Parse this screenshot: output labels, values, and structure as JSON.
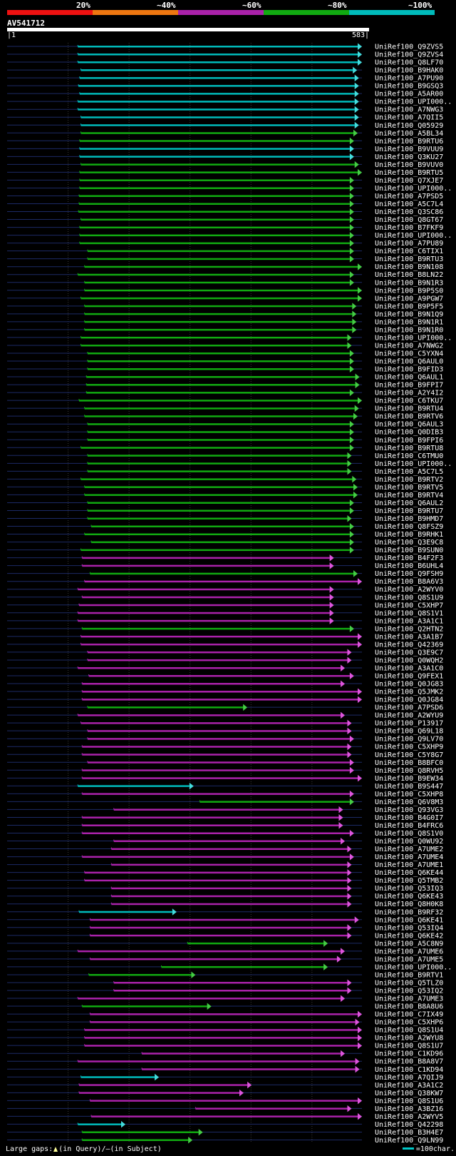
{
  "legend": {
    "labels": [
      "20%",
      "~40%",
      "~60%",
      "~80%",
      "~100%"
    ],
    "colors": [
      "#ee1111",
      "#ee7711",
      "#aa22aa",
      "#11aa11",
      "#00bbbb"
    ]
  },
  "query": {
    "name": "AV541712",
    "start": "|1",
    "end": "583|"
  },
  "footer": {
    "left_prefix": "Large gaps:",
    "left_in_query": "(in Query)/",
    "left_dash": "–",
    "left_in_subject": "(in Subject)",
    "scale": "=100char."
  },
  "chart_data": {
    "type": "alignment-overview",
    "query_length": 583,
    "hits": [
      {
        "name": "UniRef100_Q9ZVS5",
        "start": 117,
        "end": 583,
        "identity": "~100%"
      },
      {
        "name": "UniRef100_Q9ZVS4",
        "start": 117,
        "end": 583,
        "identity": "~100%"
      },
      {
        "name": "UniRef100_Q8LF70",
        "start": 117,
        "end": 583,
        "identity": "~100%"
      },
      {
        "name": "UniRef100_B9HAK0",
        "start": 122,
        "end": 575,
        "identity": "~100%"
      },
      {
        "name": "UniRef100_A7PU90",
        "start": 120,
        "end": 578,
        "identity": "~100%"
      },
      {
        "name": "UniRef100_B9GSQ3",
        "start": 118,
        "end": 578,
        "identity": "~100%"
      },
      {
        "name": "UniRef100_A5AR00",
        "start": 120,
        "end": 578,
        "identity": "~100%"
      },
      {
        "name": "UniRef100_UPI000..",
        "start": 117,
        "end": 578,
        "identity": "~100%"
      },
      {
        "name": "UniRef100_A7NWG3",
        "start": 117,
        "end": 578,
        "identity": "~100%"
      },
      {
        "name": "UniRef100_A7QII5",
        "start": 122,
        "end": 578,
        "identity": "~100%"
      },
      {
        "name": "UniRef100_Q05929",
        "start": 122,
        "end": 578,
        "identity": "~100%"
      },
      {
        "name": "UniRef100_A5BL34",
        "start": 122,
        "end": 576,
        "identity": "~80%"
      },
      {
        "name": "UniRef100_B9RTU6",
        "start": 120,
        "end": 570,
        "identity": "~80%"
      },
      {
        "name": "UniRef100_B9VUU9",
        "start": 120,
        "end": 570,
        "identity": "~100%"
      },
      {
        "name": "UniRef100_Q3KU27",
        "start": 120,
        "end": 570,
        "identity": "~100%"
      },
      {
        "name": "UniRef100_B9VUV0",
        "start": 122,
        "end": 578,
        "identity": "~80%"
      },
      {
        "name": "UniRef100_B9RTU5",
        "start": 120,
        "end": 583,
        "identity": "~80%"
      },
      {
        "name": "UniRef100_Q7XJE7",
        "start": 120,
        "end": 570,
        "identity": "~80%"
      },
      {
        "name": "UniRef100_UPI000..",
        "start": 120,
        "end": 570,
        "identity": "~80%"
      },
      {
        "name": "UniRef100_A7PSD5",
        "start": 119,
        "end": 570,
        "identity": "~80%"
      },
      {
        "name": "UniRef100_A5C7L4",
        "start": 119,
        "end": 570,
        "identity": "~80%"
      },
      {
        "name": "UniRef100_Q3SC86",
        "start": 118,
        "end": 570,
        "identity": "~80%"
      },
      {
        "name": "UniRef100_Q8GT67",
        "start": 122,
        "end": 570,
        "identity": "~80%"
      },
      {
        "name": "UniRef100_B7FKF9",
        "start": 120,
        "end": 570,
        "identity": "~80%"
      },
      {
        "name": "UniRef100_UPI000..",
        "start": 120,
        "end": 570,
        "identity": "~80%"
      },
      {
        "name": "UniRef100_A7PU89",
        "start": 120,
        "end": 570,
        "identity": "~80%"
      },
      {
        "name": "UniRef100_C6TIX1",
        "start": 133,
        "end": 570,
        "identity": "~80%"
      },
      {
        "name": "UniRef100_B9RTU3",
        "start": 133,
        "end": 570,
        "identity": "~80%"
      },
      {
        "name": "UniRef100_B9N108",
        "start": 128,
        "end": 583,
        "identity": "~80%"
      },
      {
        "name": "UniRef100_B8LN22",
        "start": 117,
        "end": 570,
        "identity": "~80%"
      },
      {
        "name": "UniRef100_B9N1R3",
        "start": 128,
        "end": 570,
        "identity": "~80%"
      },
      {
        "name": "UniRef100_B9P5S0",
        "start": 128,
        "end": 583,
        "identity": "~80%"
      },
      {
        "name": "UniRef100_A9PGW7",
        "start": 122,
        "end": 583,
        "identity": "~80%"
      },
      {
        "name": "UniRef100_B9P5F5",
        "start": 128,
        "end": 574,
        "identity": "~80%"
      },
      {
        "name": "UniRef100_B9N1Q9",
        "start": 128,
        "end": 574,
        "identity": "~80%"
      },
      {
        "name": "UniRef100_B9N1R1",
        "start": 128,
        "end": 574,
        "identity": "~80%"
      },
      {
        "name": "UniRef100_B9N1R0",
        "start": 128,
        "end": 574,
        "identity": "~80%"
      },
      {
        "name": "UniRef100_UPI000..",
        "start": 122,
        "end": 566,
        "identity": "~80%"
      },
      {
        "name": "UniRef100_A7NWG2",
        "start": 122,
        "end": 566,
        "identity": "~80%"
      },
      {
        "name": "UniRef100_C5YXN4",
        "start": 133,
        "end": 570,
        "identity": "~80%"
      },
      {
        "name": "UniRef100_Q6AUL0",
        "start": 133,
        "end": 570,
        "identity": "~80%"
      },
      {
        "name": "UniRef100_B9FID3",
        "start": 133,
        "end": 570,
        "identity": "~80%"
      },
      {
        "name": "UniRef100_Q6AUL1",
        "start": 131,
        "end": 579,
        "identity": "~80%"
      },
      {
        "name": "UniRef100_B9FPI7",
        "start": 131,
        "end": 579,
        "identity": "~80%"
      },
      {
        "name": "UniRef100_A2Y4I2",
        "start": 131,
        "end": 570,
        "identity": "~80%"
      },
      {
        "name": "UniRef100_C6TKU7",
        "start": 119,
        "end": 583,
        "identity": "~80%"
      },
      {
        "name": "UniRef100_B9RTU4",
        "start": 128,
        "end": 578,
        "identity": "~80%"
      },
      {
        "name": "UniRef100_B9RTV6",
        "start": 128,
        "end": 576,
        "identity": "~80%"
      },
      {
        "name": "UniRef100_Q6AUL3",
        "start": 133,
        "end": 570,
        "identity": "~80%"
      },
      {
        "name": "UniRef100_Q0DIB3",
        "start": 133,
        "end": 570,
        "identity": "~80%"
      },
      {
        "name": "UniRef100_B9FPI6",
        "start": 133,
        "end": 570,
        "identity": "~80%"
      },
      {
        "name": "UniRef100_B9RTU8",
        "start": 122,
        "end": 570,
        "identity": "~80%"
      },
      {
        "name": "UniRef100_C6TMU0",
        "start": 133,
        "end": 566,
        "identity": "~80%"
      },
      {
        "name": "UniRef100_UPI000..",
        "start": 133,
        "end": 566,
        "identity": "~80%"
      },
      {
        "name": "UniRef100_A5C7L5",
        "start": 133,
        "end": 566,
        "identity": "~80%"
      },
      {
        "name": "UniRef100_B9RTV2",
        "start": 122,
        "end": 574,
        "identity": "~80%"
      },
      {
        "name": "UniRef100_B9RTV5",
        "start": 128,
        "end": 576,
        "identity": "~80%"
      },
      {
        "name": "UniRef100_B9RTV4",
        "start": 128,
        "end": 576,
        "identity": "~80%"
      },
      {
        "name": "UniRef100_Q6AUL2",
        "start": 133,
        "end": 570,
        "identity": "~80%"
      },
      {
        "name": "UniRef100_B9RTU7",
        "start": 133,
        "end": 570,
        "identity": "~80%"
      },
      {
        "name": "UniRef100_B9HMD7",
        "start": 133,
        "end": 566,
        "identity": "~80%"
      },
      {
        "name": "UniRef100_Q8FSZ9",
        "start": 139,
        "end": 570,
        "identity": "~80%"
      },
      {
        "name": "UniRef100_B9RHK1",
        "start": 128,
        "end": 570,
        "identity": "~80%"
      },
      {
        "name": "UniRef100_Q3E9C8",
        "start": 139,
        "end": 570,
        "identity": "~80%"
      },
      {
        "name": "UniRef100_B9SUN0",
        "start": 122,
        "end": 570,
        "identity": "~80%"
      },
      {
        "name": "UniRef100_B4F2F3",
        "start": 124,
        "end": 537,
        "identity": "~60%"
      },
      {
        "name": "UniRef100_B6UHL4",
        "start": 124,
        "end": 537,
        "identity": "~60%"
      },
      {
        "name": "UniRef100_Q9FSH9",
        "start": 137,
        "end": 576,
        "identity": "~80%"
      },
      {
        "name": "UniRef100_B8A6V3",
        "start": 128,
        "end": 583,
        "identity": "~60%"
      },
      {
        "name": "UniRef100_A2WYV0",
        "start": 117,
        "end": 537,
        "identity": "~60%"
      },
      {
        "name": "UniRef100_Q8S1U9",
        "start": 124,
        "end": 537,
        "identity": "~60%"
      },
      {
        "name": "UniRef100_C5XHP7",
        "start": 119,
        "end": 537,
        "identity": "~60%"
      },
      {
        "name": "UniRef100_Q8S1V1",
        "start": 117,
        "end": 537,
        "identity": "~60%"
      },
      {
        "name": "UniRef100_A3A1C1",
        "start": 117,
        "end": 537,
        "identity": "~60%"
      },
      {
        "name": "UniRef100_Q2HTN2",
        "start": 124,
        "end": 570,
        "identity": "~80%"
      },
      {
        "name": "UniRef100_A3A1B7",
        "start": 122,
        "end": 583,
        "identity": "~60%"
      },
      {
        "name": "UniRef100_Q42369",
        "start": 122,
        "end": 583,
        "identity": "~60%"
      },
      {
        "name": "UniRef100_Q3E9C7",
        "start": 133,
        "end": 566,
        "identity": "~60%"
      },
      {
        "name": "UniRef100_Q0WQH2",
        "start": 133,
        "end": 566,
        "identity": "~60%"
      },
      {
        "name": "UniRef100_A3A1C0",
        "start": 117,
        "end": 555,
        "identity": "~60%"
      },
      {
        "name": "UniRef100_Q9FEX1",
        "start": 135,
        "end": 570,
        "identity": "~60%"
      },
      {
        "name": "UniRef100_Q0JG83",
        "start": 124,
        "end": 555,
        "identity": "~60%"
      },
      {
        "name": "UniRef100_Q5JMK2",
        "start": 124,
        "end": 583,
        "identity": "~60%"
      },
      {
        "name": "UniRef100_Q0JG84",
        "start": 124,
        "end": 583,
        "identity": "~60%"
      },
      {
        "name": "UniRef100_A7PSD6",
        "start": 133,
        "end": 395,
        "identity": "~80%"
      },
      {
        "name": "UniRef100_A2WYU9",
        "start": 117,
        "end": 555,
        "identity": "~60%"
      },
      {
        "name": "UniRef100_P13917",
        "start": 122,
        "end": 566,
        "identity": "~60%"
      },
      {
        "name": "UniRef100_Q69L18",
        "start": 133,
        "end": 566,
        "identity": "~60%"
      },
      {
        "name": "UniRef100_Q9LV70",
        "start": 133,
        "end": 570,
        "identity": "~60%"
      },
      {
        "name": "UniRef100_C5XHP9",
        "start": 124,
        "end": 566,
        "identity": "~60%"
      },
      {
        "name": "UniRef100_C5Y8G7",
        "start": 124,
        "end": 566,
        "identity": "~60%"
      },
      {
        "name": "UniRef100_B8BFC0",
        "start": 133,
        "end": 570,
        "identity": "~60%"
      },
      {
        "name": "UniRef100_Q8RVH5",
        "start": 124,
        "end": 570,
        "identity": "~60%"
      },
      {
        "name": "UniRef100_B9EW34",
        "start": 124,
        "end": 583,
        "identity": "~60%"
      },
      {
        "name": "UniRef100_B9S447",
        "start": 117,
        "end": 307,
        "identity": "~100%"
      },
      {
        "name": "UniRef100_C5XHP8",
        "start": 124,
        "end": 570,
        "identity": "~60%"
      },
      {
        "name": "UniRef100_Q6V8M3",
        "start": 317,
        "end": 570,
        "identity": "~80%"
      },
      {
        "name": "UniRef100_Q93VG3",
        "start": 176,
        "end": 552,
        "identity": "~60%"
      },
      {
        "name": "UniRef100_B4G0I7",
        "start": 124,
        "end": 552,
        "identity": "~60%"
      },
      {
        "name": "UniRef100_B4FRC6",
        "start": 124,
        "end": 552,
        "identity": "~60%"
      },
      {
        "name": "UniRef100_Q8S1V0",
        "start": 124,
        "end": 570,
        "identity": "~60%"
      },
      {
        "name": "UniRef100_Q0WU92",
        "start": 176,
        "end": 555,
        "identity": "~60%"
      },
      {
        "name": "UniRef100_A7UME2",
        "start": 172,
        "end": 566,
        "identity": "~60%"
      },
      {
        "name": "UniRef100_A7UME4",
        "start": 124,
        "end": 570,
        "identity": "~60%"
      },
      {
        "name": "UniRef100_A7UME1",
        "start": 172,
        "end": 566,
        "identity": "~60%"
      },
      {
        "name": "UniRef100_Q6KE44",
        "start": 128,
        "end": 566,
        "identity": "~60%"
      },
      {
        "name": "UniRef100_Q5TMB2",
        "start": 128,
        "end": 566,
        "identity": "~60%"
      },
      {
        "name": "UniRef100_Q53IQ3",
        "start": 172,
        "end": 566,
        "identity": "~60%"
      },
      {
        "name": "UniRef100_Q6KE43",
        "start": 172,
        "end": 566,
        "identity": "~60%"
      },
      {
        "name": "UniRef100_Q8H0K8",
        "start": 172,
        "end": 566,
        "identity": "~60%"
      },
      {
        "name": "UniRef100_B9RF32",
        "start": 119,
        "end": 279,
        "identity": "~100%"
      },
      {
        "name": "UniRef100_Q6KE41",
        "start": 137,
        "end": 578,
        "identity": "~60%"
      },
      {
        "name": "UniRef100_Q53IQ4",
        "start": 137,
        "end": 566,
        "identity": "~60%"
      },
      {
        "name": "UniRef100_Q6KE42",
        "start": 137,
        "end": 566,
        "identity": "~60%"
      },
      {
        "name": "UniRef100_A5C8N9",
        "start": 297,
        "end": 527,
        "identity": "~80%"
      },
      {
        "name": "UniRef100_A7UME6",
        "start": 117,
        "end": 555,
        "identity": "~60%"
      },
      {
        "name": "UniRef100_A7UME5",
        "start": 137,
        "end": 549,
        "identity": "~60%"
      },
      {
        "name": "UniRef100_UPI000..",
        "start": 254,
        "end": 527,
        "identity": "~80%"
      },
      {
        "name": "UniRef100_B9RTV1",
        "start": 135,
        "end": 310,
        "identity": "~80%"
      },
      {
        "name": "UniRef100_Q5TLZ0",
        "start": 176,
        "end": 566,
        "identity": "~60%"
      },
      {
        "name": "UniRef100_Q53IQ2",
        "start": 176,
        "end": 566,
        "identity": "~60%"
      },
      {
        "name": "UniRef100_A7UME3",
        "start": 117,
        "end": 555,
        "identity": "~60%"
      },
      {
        "name": "UniRef100_B8A8U6",
        "start": 124,
        "end": 336,
        "identity": "~80%"
      },
      {
        "name": "UniRef100_C7IX49",
        "start": 137,
        "end": 583,
        "identity": "~60%"
      },
      {
        "name": "UniRef100_C5XHP6",
        "start": 137,
        "end": 579,
        "identity": "~60%"
      },
      {
        "name": "UniRef100_Q8S1U4",
        "start": 128,
        "end": 583,
        "identity": "~60%"
      },
      {
        "name": "UniRef100_A2WYU8",
        "start": 128,
        "end": 583,
        "identity": "~60%"
      },
      {
        "name": "UniRef100_Q8S1U7",
        "start": 128,
        "end": 583,
        "identity": "~60%"
      },
      {
        "name": "UniRef100_C1KD96",
        "start": 222,
        "end": 555,
        "identity": "~60%"
      },
      {
        "name": "UniRef100_B8A8V7",
        "start": 117,
        "end": 579,
        "identity": "~60%"
      },
      {
        "name": "UniRef100_C1KD94",
        "start": 222,
        "end": 579,
        "identity": "~60%"
      },
      {
        "name": "UniRef100_A7QIJ9",
        "start": 122,
        "end": 250,
        "identity": "~100%"
      },
      {
        "name": "UniRef100_A3A1C2",
        "start": 119,
        "end": 402,
        "identity": "~60%"
      },
      {
        "name": "UniRef100_Q38KW7",
        "start": 119,
        "end": 389,
        "identity": "~60%"
      },
      {
        "name": "UniRef100_Q8S1U6",
        "start": 137,
        "end": 583,
        "identity": "~60%"
      },
      {
        "name": "UniRef100_A3BZ16",
        "start": 310,
        "end": 566,
        "identity": "~60%"
      },
      {
        "name": "UniRef100_A2WYV5",
        "start": 139,
        "end": 583,
        "identity": "~60%"
      },
      {
        "name": "UniRef100_Q42298",
        "start": 117,
        "end": 195,
        "identity": "~100%"
      },
      {
        "name": "UniRef100_B3H4E7",
        "start": 124,
        "end": 322,
        "identity": "~80%"
      },
      {
        "name": "UniRef100_Q9LN99",
        "start": 124,
        "end": 305,
        "identity": "~80%"
      }
    ]
  }
}
